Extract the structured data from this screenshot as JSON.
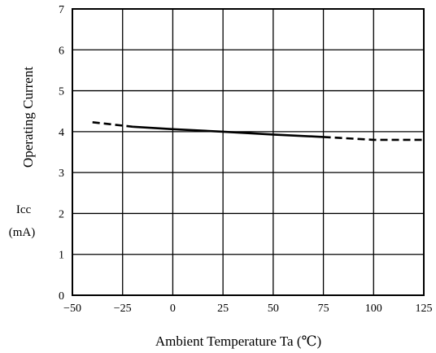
{
  "chart_data": {
    "type": "line",
    "xlabel": "Ambient Temperature Ta (℃)",
    "ylabel": "Operating Current",
    "ylabel_symbol": "Icc",
    "ylabel_unit": "(mA)",
    "x_ticks": [
      "−50",
      "−25",
      "0",
      "25",
      "50",
      "75",
      "100",
      "125"
    ],
    "y_ticks": [
      "0",
      "1",
      "2",
      "3",
      "4",
      "5",
      "6",
      "7"
    ],
    "xlim": [
      -50,
      125
    ],
    "ylim": [
      0,
      7
    ],
    "grid": true,
    "series": [
      {
        "style": "solid",
        "x": [
          -20,
          0,
          25,
          50,
          75
        ],
        "y": [
          4.12,
          4.06,
          4.0,
          3.93,
          3.87
        ]
      },
      {
        "style": "dashed",
        "x": [
          -40,
          -20
        ],
        "y": [
          4.23,
          4.12
        ]
      },
      {
        "style": "dashed",
        "x": [
          75,
          100,
          125
        ],
        "y": [
          3.87,
          3.8,
          3.8
        ]
      }
    ]
  }
}
